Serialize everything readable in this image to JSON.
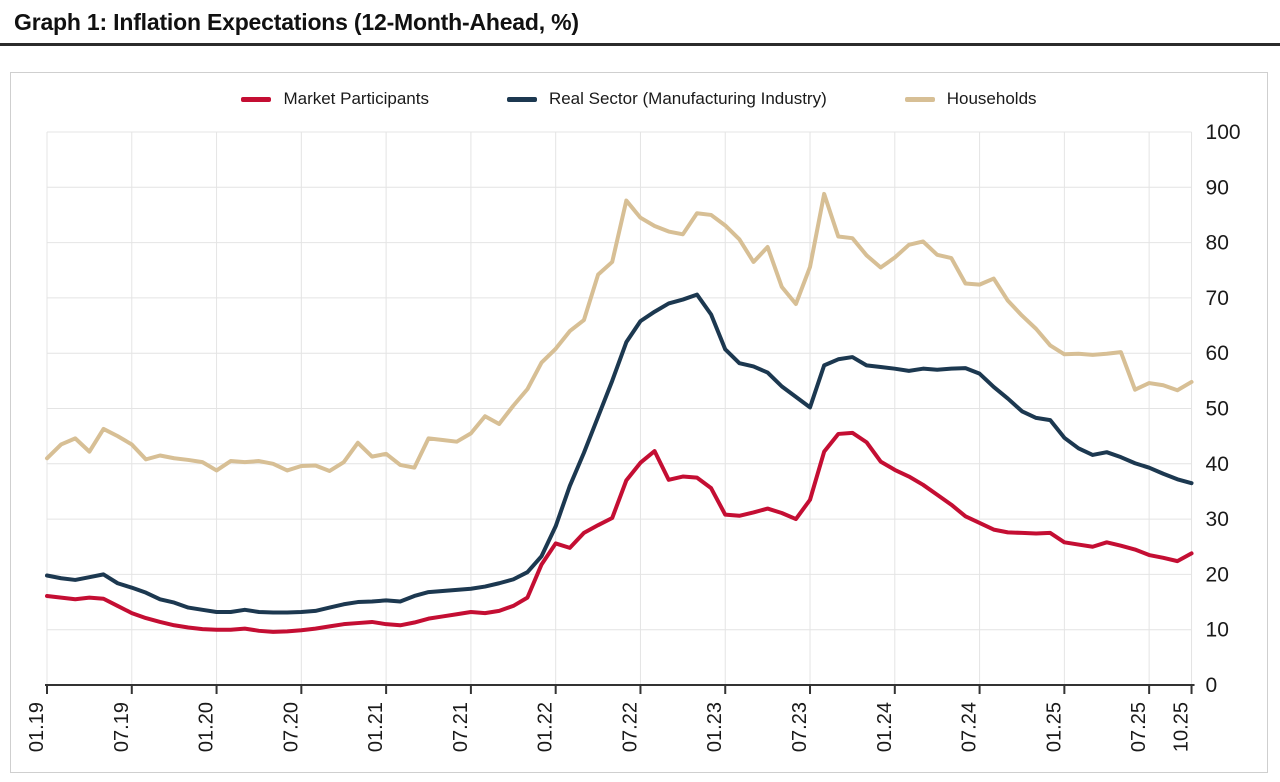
{
  "title": "Graph 1: Inflation Expectations (12-Month-Ahead, %)",
  "chart_data": {
    "type": "line",
    "title": "Graph 1: Inflation Expectations (12-Month-Ahead, %)",
    "x_start": "01.19",
    "x_end": "10.25",
    "x_frequency": "monthly",
    "x_tick_labels": [
      "01.19",
      "07.19",
      "01.20",
      "07.20",
      "01.21",
      "07.21",
      "01.22",
      "07.22",
      "01.23",
      "07.23",
      "01.24",
      "07.24",
      "01.25",
      "07.25",
      "10.25"
    ],
    "x_tick_month_index": [
      0,
      6,
      12,
      18,
      24,
      30,
      36,
      42,
      48,
      54,
      60,
      66,
      72,
      78,
      81
    ],
    "y_ticks": [
      0,
      10,
      20,
      30,
      40,
      50,
      60,
      70,
      80,
      90,
      100
    ],
    "ylim": [
      0,
      100
    ],
    "y_axis_side": "right",
    "grid": true,
    "legend_position": "top",
    "series": [
      {
        "name": "Market Participants",
        "color": "#c40e33",
        "values": [
          16.1,
          15.8,
          15.5,
          15.8,
          15.6,
          14.3,
          13.0,
          12.1,
          11.4,
          10.8,
          10.4,
          10.1,
          10.0,
          10.0,
          10.2,
          9.8,
          9.6,
          9.7,
          9.9,
          10.2,
          10.6,
          11.0,
          11.2,
          11.4,
          11.0,
          10.8,
          11.3,
          12.0,
          12.4,
          12.8,
          13.2,
          13.0,
          13.4,
          14.3,
          15.8,
          21.8,
          25.6,
          24.8,
          27.5,
          28.9,
          30.2,
          37.0,
          40.2,
          42.3,
          37.1,
          37.7,
          37.5,
          35.6,
          30.8,
          30.6,
          31.2,
          31.9,
          31.1,
          30.0,
          33.5,
          42.2,
          45.4,
          45.6,
          43.9,
          40.4,
          38.9,
          37.7,
          36.2,
          34.4,
          32.6,
          30.5,
          29.3,
          28.1,
          27.6,
          27.5,
          27.4,
          27.5,
          25.8,
          25.4,
          25.0,
          25.8,
          25.2,
          24.5,
          23.5,
          23.0,
          22.4,
          23.8
        ]
      },
      {
        "name": "Real Sector (Manufacturing Industry)",
        "color": "#1c3850",
        "values": [
          19.8,
          19.3,
          19.0,
          19.5,
          20.0,
          18.4,
          17.6,
          16.7,
          15.5,
          14.9,
          14.0,
          13.6,
          13.2,
          13.2,
          13.6,
          13.2,
          13.1,
          13.1,
          13.2,
          13.4,
          14.0,
          14.6,
          15.0,
          15.1,
          15.3,
          15.1,
          16.1,
          16.8,
          17.0,
          17.2,
          17.4,
          17.8,
          18.4,
          19.1,
          20.4,
          23.3,
          28.7,
          36.0,
          42.0,
          48.5,
          55.0,
          62.0,
          65.8,
          67.5,
          69.0,
          69.7,
          70.6,
          67.0,
          60.7,
          58.2,
          57.6,
          56.5,
          54.0,
          52.1,
          50.2,
          57.8,
          58.9,
          59.3,
          57.8,
          57.5,
          57.2,
          56.8,
          57.2,
          57.0,
          57.2,
          57.3,
          56.3,
          53.9,
          51.8,
          49.5,
          48.3,
          47.9,
          44.7,
          42.8,
          41.6,
          42.1,
          41.2,
          40.1,
          39.3,
          38.2,
          37.2,
          36.5
        ]
      },
      {
        "name": "Households",
        "color": "#d7bf95",
        "values": [
          41.0,
          43.5,
          44.6,
          42.2,
          46.3,
          45.0,
          43.5,
          40.8,
          41.5,
          41.0,
          40.7,
          40.3,
          38.8,
          40.5,
          40.3,
          40.5,
          40.0,
          38.8,
          39.6,
          39.7,
          38.7,
          40.3,
          43.8,
          41.3,
          41.8,
          39.8,
          39.3,
          44.6,
          44.3,
          44.0,
          45.5,
          48.6,
          47.2,
          50.5,
          53.5,
          58.3,
          60.8,
          64.0,
          66.0,
          74.2,
          76.5,
          87.6,
          84.5,
          83.0,
          82.0,
          81.5,
          85.3,
          85.0,
          83.1,
          80.6,
          76.5,
          79.2,
          72.0,
          68.9,
          75.6,
          88.8,
          81.1,
          80.8,
          77.7,
          75.5,
          77.3,
          79.6,
          80.2,
          77.8,
          77.2,
          72.6,
          72.4,
          73.5,
          69.5,
          66.8,
          64.4,
          61.4,
          59.8,
          59.9,
          59.7,
          59.9,
          60.2,
          53.4,
          54.6,
          54.2,
          53.3,
          54.8
        ]
      }
    ]
  },
  "colors": {
    "market_participants": "#c40e33",
    "real_sector": "#1c3850",
    "households": "#d7bf95",
    "grid": "#e4e4e4",
    "axis": "#333333",
    "text": "#1a1a1a",
    "title_rule": "#2b2b2b",
    "card_border": "#cfcfcf"
  }
}
